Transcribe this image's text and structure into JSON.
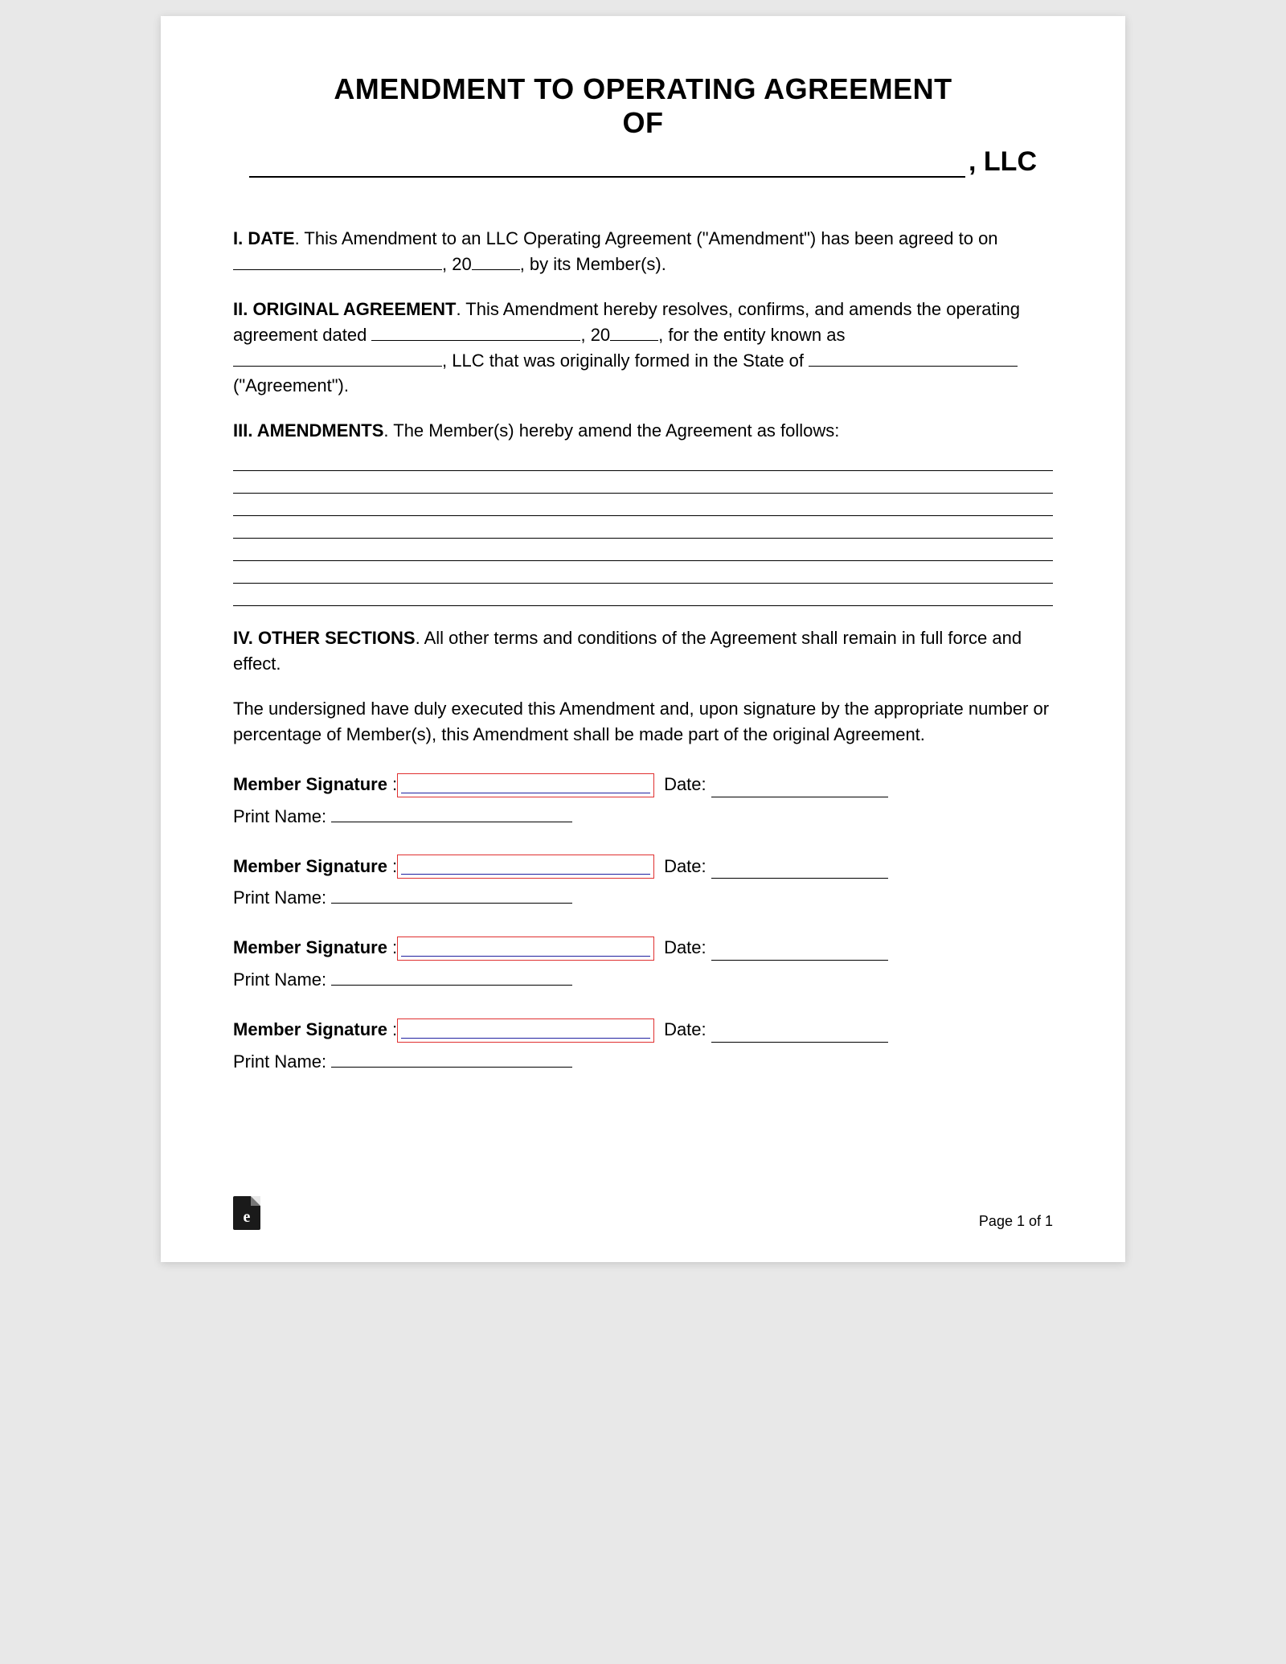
{
  "title": {
    "line1": "AMENDMENT TO OPERATING AGREEMENT",
    "line2": "OF",
    "suffix": ", LLC"
  },
  "sections": {
    "s1": {
      "head": "I. DATE",
      "text1": ". This Amendment to an LLC Operating Agreement (\"Amendment\") has been agreed to on ",
      "text2": ", 20",
      "text3": ", by its Member(s)."
    },
    "s2": {
      "head": "II. ORIGINAL AGREEMENT",
      "text1": ". This Amendment hereby resolves, confirms, and amends the operating agreement dated ",
      "text2": ", 20",
      "text3": ", for the entity known as ",
      "text4": ", LLC that was originally formed in the State of ",
      "text5": " (\"Agreement\")."
    },
    "s3": {
      "head": "III. AMENDMENTS",
      "text1": ". The Member(s) hereby amend the Agreement as follows:",
      "line_count": 7
    },
    "s4": {
      "head": "IV. OTHER SECTIONS",
      "text1": ". All other terms and conditions of the Agreement shall remain in full force and effect."
    },
    "closing": "The undersigned have duly executed this Amendment and, upon signature by the appropriate number or percentage of Member(s), this Amendment shall be made part of the original Agreement."
  },
  "signatures": {
    "count": 4,
    "sig_label": "Member Signature",
    "date_label": "Date:",
    "print_label": "Print Name:"
  },
  "footer": {
    "page_text": "Page 1 of 1",
    "logo_letter": "e"
  },
  "style": {
    "sig_border_color": "#e03030",
    "sig_underline_color": "#2020a0"
  }
}
